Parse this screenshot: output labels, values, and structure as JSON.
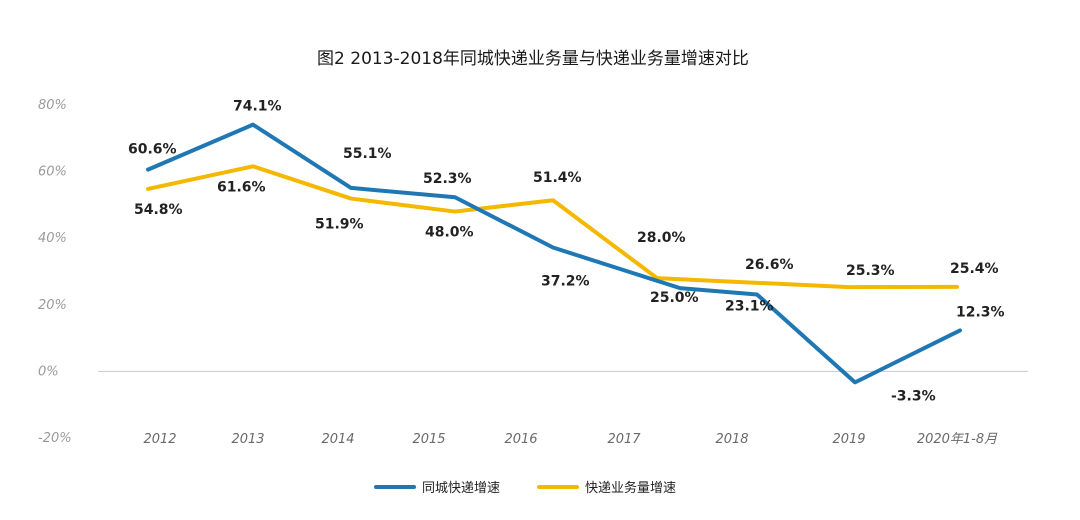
{
  "chart_data": {
    "type": "line",
    "title": "图2 2013-2018年同城快递业务量与快递业务量增速对比",
    "categories": [
      "2012",
      "2013",
      "2014",
      "2015",
      "2016",
      "2017",
      "2018",
      "2019",
      "2020年1-8月"
    ],
    "yticks": [
      "80%",
      "60%",
      "40%",
      "20%",
      "0%",
      "-20%"
    ],
    "ylim": [
      -20,
      80
    ],
    "grid": false,
    "legend_position": "bottom",
    "series": [
      {
        "name": "同城快递增速",
        "color": "#1f77b4",
        "values": [
          60.6,
          74.1,
          55.1,
          52.3,
          37.2,
          25.0,
          23.1,
          -3.3,
          12.3
        ],
        "labels": [
          "60.6%",
          "74.1%",
          "55.1%",
          "52.3%",
          "37.2%",
          "25.0%",
          "23.1%",
          "-3.3%",
          "12.3%"
        ]
      },
      {
        "name": "快递业务量增速",
        "color": "#f5b800",
        "values": [
          54.8,
          61.6,
          51.9,
          48.0,
          51.4,
          28.0,
          26.6,
          25.3,
          25.4
        ],
        "labels": [
          "54.8%",
          "61.6%",
          "51.9%",
          "48.0%",
          "51.4%",
          "28.0%",
          "26.6%",
          "25.3%",
          "25.4%"
        ]
      }
    ]
  }
}
